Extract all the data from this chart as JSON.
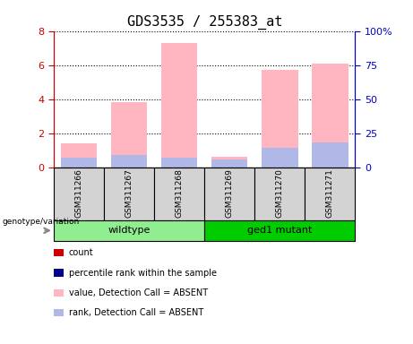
{
  "title": "GDS3535 / 255383_at",
  "samples": [
    "GSM311266",
    "GSM311267",
    "GSM311268",
    "GSM311269",
    "GSM311270",
    "GSM311271"
  ],
  "absent_values": [
    1.4,
    3.8,
    7.3,
    0.6,
    5.7,
    6.1
  ],
  "absent_ranks": [
    0.55,
    0.75,
    0.55,
    0.45,
    1.15,
    1.45
  ],
  "ylim_left": [
    0,
    8
  ],
  "ylim_right": [
    0,
    100
  ],
  "yticks_left": [
    0,
    2,
    4,
    6,
    8
  ],
  "yticks_right": [
    0,
    25,
    50,
    75,
    100
  ],
  "yticklabels_right": [
    "0",
    "25",
    "50",
    "75",
    "100%"
  ],
  "bar_width": 0.72,
  "absent_bar_color": "#ffb6c1",
  "absent_rank_color": "#b0b8e8",
  "left_tick_color": "#cc0000",
  "right_tick_color": "#0000cc",
  "bg_color": "#d3d3d3",
  "wildtype_color": "#90ee90",
  "mutant_color": "#00cc00",
  "legend_items": [
    {
      "label": "count",
      "color": "#cc0000"
    },
    {
      "label": "percentile rank within the sample",
      "color": "#00008b"
    },
    {
      "label": "value, Detection Call = ABSENT",
      "color": "#ffb6c1"
    },
    {
      "label": "rank, Detection Call = ABSENT",
      "color": "#b0b8e8"
    }
  ]
}
